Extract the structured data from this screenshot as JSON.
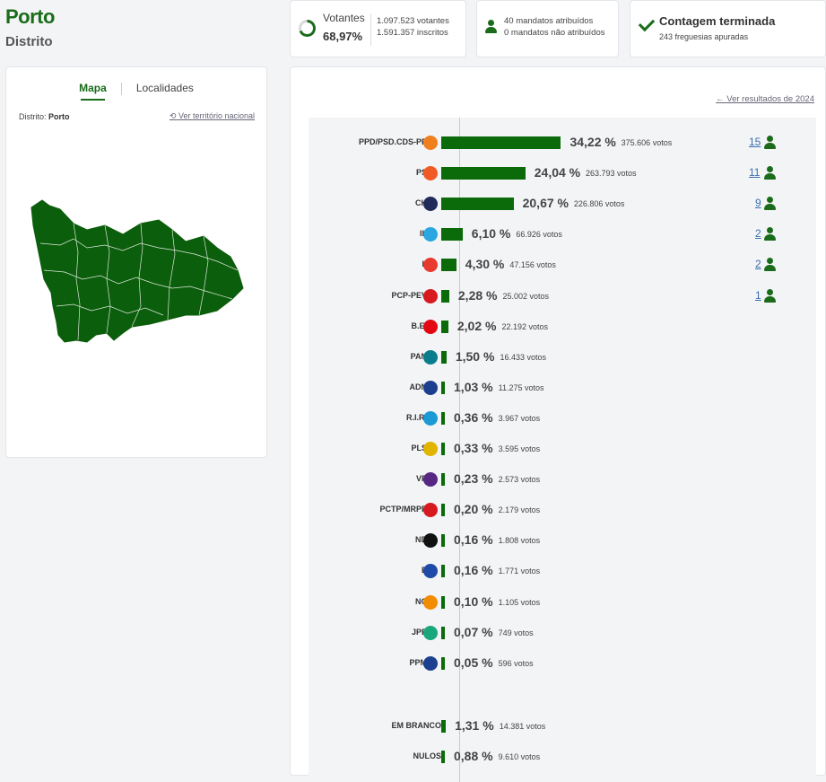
{
  "header": {
    "title": "Porto",
    "subtitle": "Distrito"
  },
  "stats": {
    "votantes_label": "Votantes",
    "votantes_pct": "68,97%",
    "votantes_count": "1.097.523 votantes",
    "inscritos_count": "1.591.357 inscritos",
    "mandatos_atribuidos": "40 mandatos atribuídos",
    "mandatos_nao_atribuidos": "0 mandatos não atribuídos",
    "contagem": "Contagem terminada",
    "freguesias": "243 freguesias apuradas"
  },
  "map_panel": {
    "tabs": [
      "Mapa",
      "Localidades"
    ],
    "distrito_label": "Distrito:",
    "distrito_value": "Porto",
    "national_link": "Ver território nacional"
  },
  "results": {
    "prev_link": "Ver resultados de 2024",
    "parties": [
      {
        "label": "PPD/PSD.CDS-PP",
        "pct": "34,22 %",
        "votos": "375.606 votos",
        "share": 34.22,
        "seats": "15",
        "logo_color": "#f07f1e"
      },
      {
        "label": "PS",
        "pct": "24,04 %",
        "votos": "263.793 votos",
        "share": 24.04,
        "seats": "11",
        "logo_color": "#f15a24"
      },
      {
        "label": "CH",
        "pct": "20,67 %",
        "votos": "226.806 votos",
        "share": 20.67,
        "seats": "9",
        "logo_color": "#202b5c"
      },
      {
        "label": "IL",
        "pct": "6,10 %",
        "votos": "66.926 votos",
        "share": 6.1,
        "seats": "2",
        "logo_color": "#2aa6e0"
      },
      {
        "label": "L",
        "pct": "4,30 %",
        "votos": "47.156 votos",
        "share": 4.3,
        "seats": "2",
        "logo_color": "#e83a2f"
      },
      {
        "label": "PCP-PEV",
        "pct": "2,28 %",
        "votos": "25.002 votos",
        "share": 2.28,
        "seats": "1",
        "logo_color": "#d71920"
      },
      {
        "label": "B.E.",
        "pct": "2,02 %",
        "votos": "22.192 votos",
        "share": 2.02,
        "seats": "",
        "logo_color": "#e30613"
      },
      {
        "label": "PAN",
        "pct": "1,50 %",
        "votos": "16.433 votos",
        "share": 1.5,
        "seats": "",
        "logo_color": "#0a7d8c"
      },
      {
        "label": "ADN",
        "pct": "1,03 %",
        "votos": "11.275 votos",
        "share": 1.03,
        "seats": "",
        "logo_color": "#1d3f8f"
      },
      {
        "label": "R.I.R.",
        "pct": "0,36 %",
        "votos": "3.967 votos",
        "share": 0.36,
        "seats": "",
        "logo_color": "#1b9ad6"
      },
      {
        "label": "PLS",
        "pct": "0,33 %",
        "votos": "3.595 votos",
        "share": 0.33,
        "seats": "",
        "logo_color": "#e0b400"
      },
      {
        "label": "VP",
        "pct": "0,23 %",
        "votos": "2.573 votos",
        "share": 0.23,
        "seats": "",
        "logo_color": "#562883"
      },
      {
        "label": "PCTP/MRPP",
        "pct": "0,20 %",
        "votos": "2.179 votos",
        "share": 0.2,
        "seats": "",
        "logo_color": "#d71920"
      },
      {
        "label": "ND",
        "pct": "0,16 %",
        "votos": "1.808 votos",
        "share": 0.16,
        "seats": "",
        "logo_color": "#111111"
      },
      {
        "label": "E",
        "pct": "0,16 %",
        "votos": "1.771 votos",
        "share": 0.16,
        "seats": "",
        "logo_color": "#1f4aa8"
      },
      {
        "label": "NC",
        "pct": "0,10 %",
        "votos": "1.105 votos",
        "share": 0.1,
        "seats": "",
        "logo_color": "#f28c00"
      },
      {
        "label": "JPP",
        "pct": "0,07 %",
        "votos": "749 votos",
        "share": 0.07,
        "seats": "",
        "logo_color": "#1aa77b"
      },
      {
        "label": "PPM",
        "pct": "0,05 %",
        "votos": "596 votos",
        "share": 0.05,
        "seats": "",
        "logo_color": "#1d3f8f"
      }
    ],
    "special": [
      {
        "label": "EM BRANCO",
        "pct": "1,31 %",
        "votos": "14.381 votos",
        "share": 1.31
      },
      {
        "label": "NULOS",
        "pct": "0,88 %",
        "votos": "9.610 votos",
        "share": 0.88
      }
    ]
  },
  "colors": {
    "brand_green": "#1a6b1a",
    "bar_green": "#0b6b0b"
  }
}
